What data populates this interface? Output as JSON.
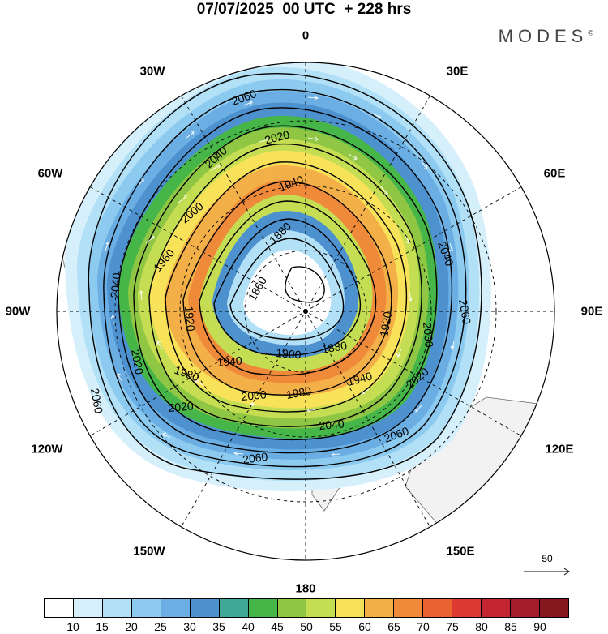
{
  "title": "07/07/2025  00 UTC  + 228 hrs",
  "brand": "MODES",
  "brand_mark": "©",
  "map": {
    "projection": "polar-stereographic-south",
    "lon_labels": [
      "0",
      "30E",
      "60E",
      "90E",
      "120E",
      "150E",
      "180",
      "150W",
      "120W",
      "90W",
      "60W",
      "30W"
    ],
    "contour_labels": [
      "2060",
      "2040",
      "2020",
      "2000",
      "1980",
      "1960",
      "1940",
      "1920",
      "1900",
      "1880",
      "1860"
    ],
    "land_color": "#f2f2f2",
    "coast_color": "#555555",
    "contour_color": "#000000",
    "vector_color": "#ffffff"
  },
  "vector_reference": {
    "value": "50"
  },
  "colorbar": {
    "levels": [
      "10",
      "15",
      "20",
      "25",
      "30",
      "35",
      "40",
      "45",
      "50",
      "55",
      "60",
      "65",
      "70",
      "75",
      "80",
      "85",
      "90"
    ],
    "colors": [
      "#ffffff",
      "#d6f0fb",
      "#b2e0f7",
      "#8ccaf0",
      "#6aaee3",
      "#4d92cf",
      "#40a894",
      "#47b649",
      "#8fc744",
      "#c5dd52",
      "#f7e25a",
      "#f4b048",
      "#ef8a3a",
      "#e96331",
      "#dc3a32",
      "#c42631",
      "#a51d2d",
      "#86171f"
    ]
  }
}
